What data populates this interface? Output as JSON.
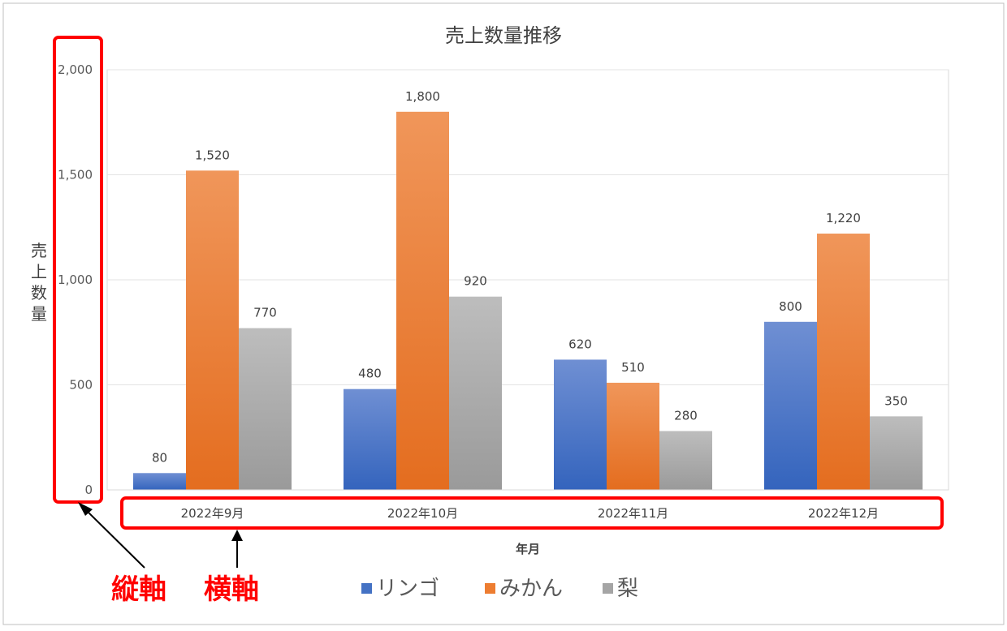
{
  "chart_data": {
    "type": "bar",
    "title": "売上数量推移",
    "xlabel": "年月",
    "ylabel": "売上数量",
    "categories": [
      "2022年9月",
      "2022年10月",
      "2022年11月",
      "2022年12月"
    ],
    "series": [
      {
        "name": "リンゴ",
        "values": [
          80,
          480,
          620,
          800
        ],
        "color": "#4472c4"
      },
      {
        "name": "みかん",
        "values": [
          1520,
          1800,
          510,
          1220
        ],
        "color": "#ed7d31"
      },
      {
        "name": "梨",
        "values": [
          770,
          920,
          280,
          350
        ],
        "color": "#a5a5a5"
      }
    ],
    "data_labels": [
      [
        "80",
        "480",
        "620",
        "800"
      ],
      [
        "1,520",
        "1,800",
        "510",
        "1,220"
      ],
      [
        "770",
        "920",
        "280",
        "350"
      ]
    ],
    "ylim": [
      0,
      2000
    ],
    "yticks": [
      0,
      500,
      1000,
      1500,
      2000
    ],
    "ytick_labels": [
      "0",
      "500",
      "1,000",
      "1,500",
      "2,000"
    ],
    "grid": true,
    "legend_position": "bottom"
  },
  "annotations": {
    "vertical_axis": "縦軸",
    "horizontal_axis": "横軸",
    "color": "#ff0000"
  }
}
